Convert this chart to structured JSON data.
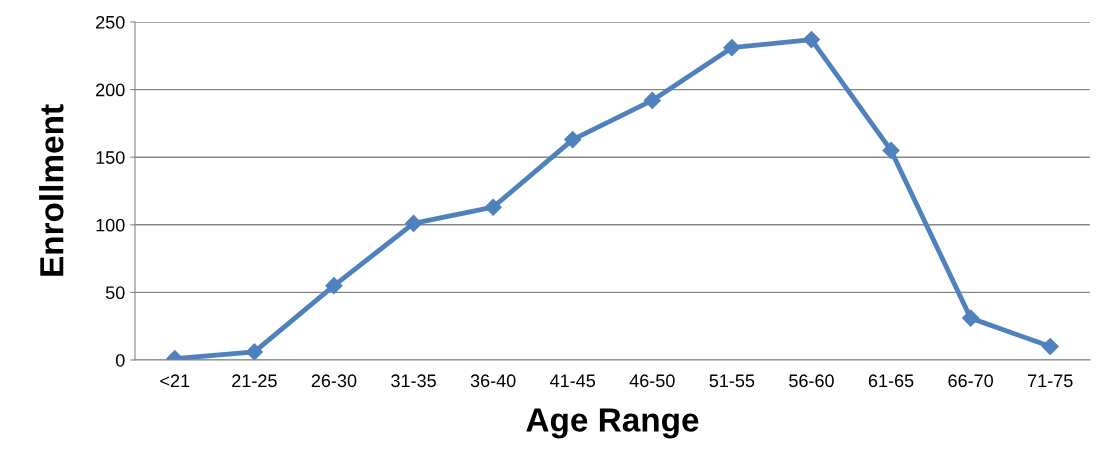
{
  "chart_data": {
    "type": "line",
    "xlabel": "Age Range",
    "ylabel": "Enrollment",
    "categories": [
      "<21",
      "21-25",
      "26-30",
      "31-35",
      "36-40",
      "41-45",
      "46-50",
      "51-55",
      "56-60",
      "61-65",
      "66-70",
      "71-75"
    ],
    "series": [
      {
        "color": "#4f81bd",
        "values": [
          1,
          6,
          55,
          101,
          113,
          163,
          192,
          231,
          237,
          155,
          31,
          10
        ]
      }
    ],
    "ylim": [
      0,
      250
    ],
    "yticks": [
      0,
      50,
      100,
      150,
      200,
      250
    ],
    "grid": "y",
    "marker": "diamond",
    "line_style": "solid"
  }
}
